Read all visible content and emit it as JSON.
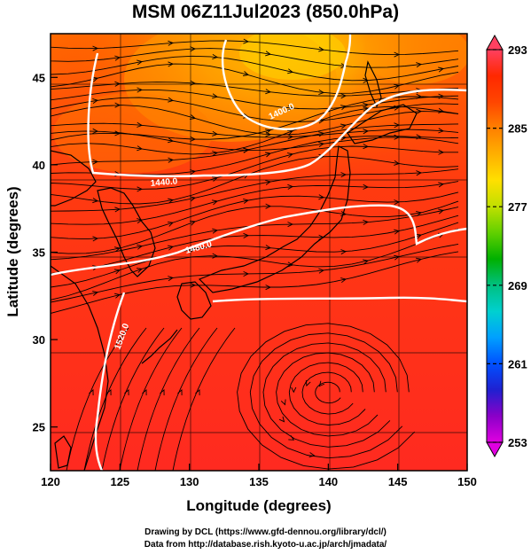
{
  "title": "MSM 06Z11Jul2023 (850.0hPa)",
  "xaxis": {
    "label": "Longitude (degrees)",
    "range": [
      120,
      150
    ],
    "ticks": [
      "120",
      "125",
      "130",
      "135",
      "140",
      "145",
      "150"
    ]
  },
  "yaxis": {
    "label": "Latitude  (degrees)",
    "range": [
      22.5,
      47.5
    ],
    "ticks": [
      "25",
      "30",
      "35",
      "40",
      "45"
    ]
  },
  "colorbar": {
    "range": [
      253,
      293
    ],
    "ticks": [
      "293",
      "285",
      "277",
      "269",
      "261",
      "253"
    ],
    "colors": [
      "#e000e0",
      "#8a00c8",
      "#2020d0",
      "#0050ff",
      "#00a0ff",
      "#00d0d0",
      "#00c080",
      "#00b000",
      "#60d000",
      "#c0e000",
      "#ffe000",
      "#ffb000",
      "#ff8000",
      "#ff4500",
      "#ff2800",
      "#ff4060"
    ]
  },
  "contours": [
    {
      "label": "1400.0"
    },
    {
      "label": "1440.0"
    },
    {
      "label": "1480.0"
    },
    {
      "label": "1520.0"
    }
  ],
  "credits": {
    "line1": "Drawing by DCL (https://www.gfd-dennou.org/library/dcl/)",
    "line2": "Data from http://database.rish.kyoto-u.ac.jp/arch/jmadata/"
  }
}
